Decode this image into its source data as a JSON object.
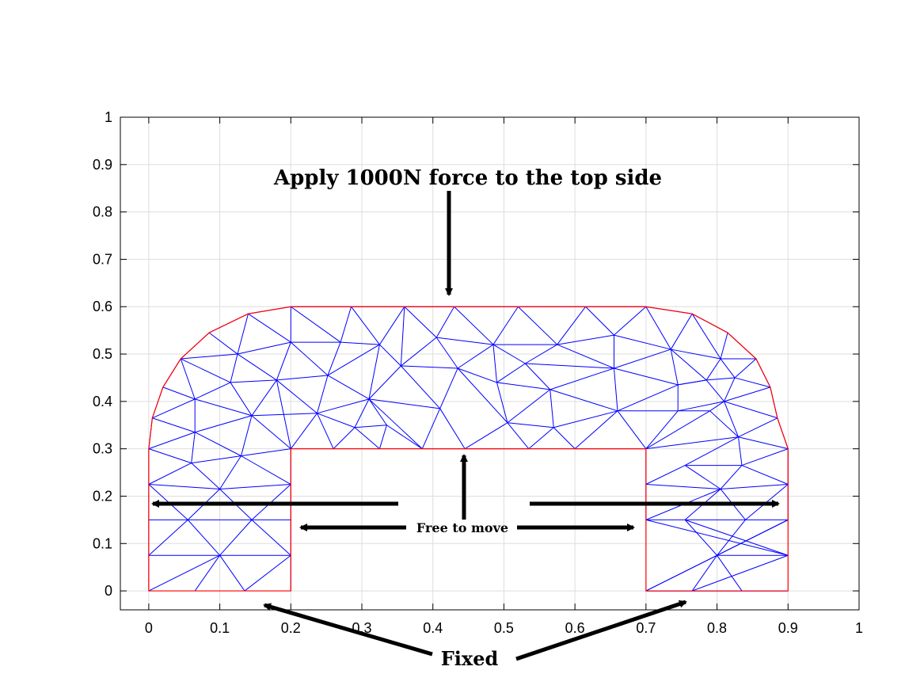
{
  "chart_data": {
    "type": "diagram",
    "xlim": [
      -0.04,
      1.0
    ],
    "ylim": [
      -0.04,
      1.0
    ],
    "grid": true,
    "x_ticks": [
      "0",
      "0.1",
      "0.2",
      "0.3",
      "0.4",
      "0.5",
      "0.6",
      "0.7",
      "0.8",
      "0.9",
      "1"
    ],
    "y_ticks": [
      "0",
      "0.1",
      "0.2",
      "0.3",
      "0.4",
      "0.5",
      "0.6",
      "0.7",
      "0.8",
      "0.9",
      "1"
    ],
    "colors": {
      "boundary": "#ff0000",
      "mesh": "#0000ff",
      "grid": "#dddddd",
      "annotation": "#000000"
    },
    "annotations": {
      "top": "Apply 1000N force to the top side",
      "middle": "Free to move",
      "bottom": "Fixed"
    },
    "boundary": [
      [
        0,
        0
      ],
      [
        0.2,
        0
      ],
      [
        0.2,
        0.3
      ],
      [
        0.7,
        0.3
      ],
      [
        0.7,
        0
      ],
      [
        0.9,
        0
      ],
      [
        0.9,
        0.3
      ],
      [
        0.885,
        0.365
      ],
      [
        0.875,
        0.43
      ],
      [
        0.855,
        0.49
      ],
      [
        0.815,
        0.545
      ],
      [
        0.765,
        0.585
      ],
      [
        0.7,
        0.6
      ],
      [
        0.2,
        0.6
      ],
      [
        0.14,
        0.585
      ],
      [
        0.085,
        0.545
      ],
      [
        0.045,
        0.49
      ],
      [
        0.02,
        0.43
      ],
      [
        0.005,
        0.365
      ],
      [
        0,
        0.3
      ]
    ],
    "mesh_nodes": [
      [
        0,
        0
      ],
      [
        0.065,
        0
      ],
      [
        0.135,
        0
      ],
      [
        0.2,
        0
      ],
      [
        0,
        0.075
      ],
      [
        0.1,
        0.075
      ],
      [
        0.2,
        0.075
      ],
      [
        0,
        0.15
      ],
      [
        0.055,
        0.15
      ],
      [
        0.145,
        0.15
      ],
      [
        0.2,
        0.15
      ],
      [
        0,
        0.225
      ],
      [
        0.1,
        0.215
      ],
      [
        0.2,
        0.225
      ],
      [
        0,
        0.3
      ],
      [
        0.06,
        0.27
      ],
      [
        0.13,
        0.285
      ],
      [
        0.2,
        0.3
      ],
      [
        0.005,
        0.365
      ],
      [
        0.065,
        0.335
      ],
      [
        0.145,
        0.37
      ],
      [
        0.02,
        0.43
      ],
      [
        0.065,
        0.405
      ],
      [
        0.115,
        0.44
      ],
      [
        0.18,
        0.445
      ],
      [
        0.045,
        0.49
      ],
      [
        0.125,
        0.5
      ],
      [
        0.2,
        0.525
      ],
      [
        0.085,
        0.545
      ],
      [
        0.14,
        0.585
      ],
      [
        0.2,
        0.6
      ],
      [
        0.26,
        0.3
      ],
      [
        0.29,
        0.345
      ],
      [
        0.325,
        0.3
      ],
      [
        0.335,
        0.35
      ],
      [
        0.237,
        0.375
      ],
      [
        0.31,
        0.405
      ],
      [
        0.27,
        0.525
      ],
      [
        0.285,
        0.6
      ],
      [
        0.252,
        0.455
      ],
      [
        0.325,
        0.52
      ],
      [
        0.385,
        0.3
      ],
      [
        0.41,
        0.385
      ],
      [
        0.355,
        0.475
      ],
      [
        0.36,
        0.6
      ],
      [
        0.43,
        0.6
      ],
      [
        0.445,
        0.3
      ],
      [
        0.435,
        0.47
      ],
      [
        0.405,
        0.535
      ],
      [
        0.505,
        0.355
      ],
      [
        0.535,
        0.3
      ],
      [
        0.49,
        0.44
      ],
      [
        0.485,
        0.52
      ],
      [
        0.52,
        0.6
      ],
      [
        0.57,
        0.345
      ],
      [
        0.565,
        0.425
      ],
      [
        0.6,
        0.3
      ],
      [
        0.615,
        0.6
      ],
      [
        0.575,
        0.52
      ],
      [
        0.53,
        0.48
      ],
      [
        0.66,
        0.38
      ],
      [
        0.655,
        0.47
      ],
      [
        0.7,
        0.6
      ],
      [
        0.655,
        0.54
      ],
      [
        0.7,
        0.3
      ],
      [
        0.745,
        0.38
      ],
      [
        0.745,
        0.435
      ],
      [
        0.735,
        0.51
      ],
      [
        0.765,
        0.585
      ],
      [
        0.785,
        0.445
      ],
      [
        0.805,
        0.49
      ],
      [
        0.815,
        0.545
      ],
      [
        0.79,
        0.38
      ],
      [
        0.855,
        0.49
      ],
      [
        0.81,
        0.4
      ],
      [
        0.825,
        0.45
      ],
      [
        0.875,
        0.43
      ],
      [
        0.885,
        0.365
      ],
      [
        0.83,
        0.325
      ],
      [
        0.9,
        0.3
      ],
      [
        0.7,
        0.225
      ],
      [
        0.755,
        0.265
      ],
      [
        0.835,
        0.265
      ],
      [
        0.9,
        0.225
      ],
      [
        0.805,
        0.215
      ],
      [
        0.7,
        0.15
      ],
      [
        0.755,
        0.15
      ],
      [
        0.84,
        0.15
      ],
      [
        0.9,
        0.15
      ],
      [
        0.8,
        0.075
      ],
      [
        0.7,
        0.075
      ],
      [
        0.9,
        0.075
      ],
      [
        0.7,
        0
      ],
      [
        0.765,
        0
      ],
      [
        0.835,
        0
      ],
      [
        0.9,
        0
      ]
    ],
    "mesh_edges": [
      [
        0,
        4
      ],
      [
        0,
        5
      ],
      [
        1,
        5
      ],
      [
        2,
        5
      ],
      [
        2,
        6
      ],
      [
        3,
        6
      ],
      [
        4,
        5
      ],
      [
        5,
        6
      ],
      [
        4,
        7
      ],
      [
        4,
        8
      ],
      [
        5,
        8
      ],
      [
        5,
        9
      ],
      [
        6,
        9
      ],
      [
        6,
        10
      ],
      [
        7,
        8
      ],
      [
        8,
        9
      ],
      [
        9,
        10
      ],
      [
        7,
        11
      ],
      [
        8,
        11
      ],
      [
        8,
        12
      ],
      [
        9,
        12
      ],
      [
        9,
        13
      ],
      [
        10,
        13
      ],
      [
        11,
        12
      ],
      [
        12,
        13
      ],
      [
        11,
        14
      ],
      [
        11,
        15
      ],
      [
        12,
        15
      ],
      [
        12,
        16
      ],
      [
        13,
        16
      ],
      [
        13,
        17
      ],
      [
        14,
        15
      ],
      [
        15,
        16
      ],
      [
        16,
        17
      ],
      [
        14,
        18
      ],
      [
        14,
        19
      ],
      [
        15,
        19
      ],
      [
        16,
        19
      ],
      [
        16,
        20
      ],
      [
        17,
        20
      ],
      [
        18,
        19
      ],
      [
        19,
        20
      ],
      [
        18,
        21
      ],
      [
        18,
        22
      ],
      [
        19,
        22
      ],
      [
        20,
        22
      ],
      [
        20,
        23
      ],
      [
        20,
        24
      ],
      [
        17,
        24
      ],
      [
        21,
        22
      ],
      [
        22,
        23
      ],
      [
        23,
        24
      ],
      [
        21,
        25
      ],
      [
        22,
        25
      ],
      [
        23,
        25
      ],
      [
        23,
        26
      ],
      [
        24,
        26
      ],
      [
        24,
        27
      ],
      [
        25,
        26
      ],
      [
        26,
        27
      ],
      [
        25,
        28
      ],
      [
        26,
        28
      ],
      [
        26,
        29
      ],
      [
        27,
        29
      ],
      [
        27,
        30
      ],
      [
        28,
        29
      ],
      [
        29,
        30
      ],
      [
        17,
        35
      ],
      [
        20,
        35
      ],
      [
        24,
        35
      ],
      [
        35,
        31
      ],
      [
        35,
        32
      ],
      [
        31,
        32
      ],
      [
        32,
        33
      ],
      [
        32,
        34
      ],
      [
        33,
        34
      ],
      [
        35,
        36
      ],
      [
        32,
        36
      ],
      [
        34,
        36
      ],
      [
        24,
        39
      ],
      [
        35,
        39
      ],
      [
        36,
        39
      ],
      [
        27,
        39
      ],
      [
        27,
        37
      ],
      [
        39,
        37
      ],
      [
        30,
        37
      ],
      [
        37,
        38
      ],
      [
        30,
        38
      ],
      [
        39,
        40
      ],
      [
        36,
        40
      ],
      [
        37,
        40
      ],
      [
        38,
        40
      ],
      [
        34,
        41
      ],
      [
        36,
        41
      ],
      [
        36,
        42
      ],
      [
        41,
        42
      ],
      [
        40,
        43
      ],
      [
        36,
        43
      ],
      [
        42,
        43
      ],
      [
        38,
        44
      ],
      [
        40,
        44
      ],
      [
        43,
        44
      ],
      [
        41,
        46
      ],
      [
        42,
        46
      ],
      [
        42,
        47
      ],
      [
        43,
        47
      ],
      [
        43,
        48
      ],
      [
        44,
        48
      ],
      [
        47,
        48
      ],
      [
        44,
        45
      ],
      [
        45,
        48
      ],
      [
        46,
        49
      ],
      [
        47,
        49
      ],
      [
        46,
        50
      ],
      [
        49,
        50
      ],
      [
        47,
        51
      ],
      [
        49,
        51
      ],
      [
        47,
        52
      ],
      [
        48,
        52
      ],
      [
        51,
        52
      ],
      [
        45,
        52
      ],
      [
        52,
        53
      ],
      [
        45,
        53
      ],
      [
        49,
        54
      ],
      [
        50,
        54
      ],
      [
        54,
        56
      ],
      [
        51,
        55
      ],
      [
        54,
        55
      ],
      [
        49,
        55
      ],
      [
        51,
        59
      ],
      [
        52,
        59
      ],
      [
        55,
        59
      ],
      [
        52,
        58
      ],
      [
        59,
        58
      ],
      [
        53,
        58
      ],
      [
        53,
        57
      ],
      [
        57,
        58
      ],
      [
        54,
        60
      ],
      [
        55,
        60
      ],
      [
        56,
        60
      ],
      [
        55,
        61
      ],
      [
        60,
        61
      ],
      [
        58,
        61
      ],
      [
        59,
        61
      ],
      [
        58,
        63
      ],
      [
        61,
        63
      ],
      [
        57,
        63
      ],
      [
        57,
        62
      ],
      [
        62,
        63
      ],
      [
        56,
        64
      ],
      [
        60,
        64
      ],
      [
        60,
        65
      ],
      [
        64,
        65
      ],
      [
        61,
        66
      ],
      [
        65,
        66
      ],
      [
        60,
        66
      ],
      [
        61,
        67
      ],
      [
        63,
        67
      ],
      [
        66,
        67
      ],
      [
        62,
        67
      ],
      [
        62,
        68
      ],
      [
        67,
        68
      ],
      [
        66,
        69
      ],
      [
        67,
        69
      ],
      [
        69,
        70
      ],
      [
        67,
        70
      ],
      [
        68,
        70
      ],
      [
        68,
        71
      ],
      [
        70,
        71
      ],
      [
        65,
        72
      ],
      [
        64,
        72
      ],
      [
        72,
        74
      ],
      [
        65,
        74
      ],
      [
        69,
        74
      ],
      [
        66,
        69
      ],
      [
        74,
        75
      ],
      [
        69,
        75
      ],
      [
        70,
        75
      ],
      [
        70,
        73
      ],
      [
        71,
        73
      ],
      [
        73,
        76
      ],
      [
        75,
        76
      ],
      [
        73,
        75
      ],
      [
        74,
        76
      ],
      [
        74,
        77
      ],
      [
        76,
        77
      ],
      [
        72,
        78
      ],
      [
        74,
        78
      ],
      [
        77,
        78
      ],
      [
        78,
        79
      ],
      [
        77,
        79
      ],
      [
        64,
        78
      ],
      [
        64,
        80
      ],
      [
        80,
        81
      ],
      [
        81,
        78
      ],
      [
        81,
        82
      ],
      [
        78,
        82
      ],
      [
        82,
        79
      ],
      [
        82,
        83
      ],
      [
        79,
        83
      ],
      [
        81,
        84
      ],
      [
        84,
        82
      ],
      [
        84,
        83
      ],
      [
        80,
        84
      ],
      [
        80,
        85
      ],
      [
        85,
        84
      ],
      [
        85,
        86
      ],
      [
        84,
        86
      ],
      [
        86,
        87
      ],
      [
        84,
        87
      ],
      [
        87,
        88
      ],
      [
        83,
        87
      ],
      [
        83,
        88
      ],
      [
        85,
        91
      ],
      [
        91,
        86
      ],
      [
        86,
        89
      ],
      [
        89,
        87
      ],
      [
        89,
        88
      ],
      [
        88,
        92
      ],
      [
        89,
        92
      ],
      [
        91,
        89
      ],
      [
        91,
        93
      ],
      [
        89,
        93
      ],
      [
        89,
        94
      ],
      [
        92,
        94
      ],
      [
        92,
        95
      ],
      [
        94,
        95
      ]
    ]
  }
}
